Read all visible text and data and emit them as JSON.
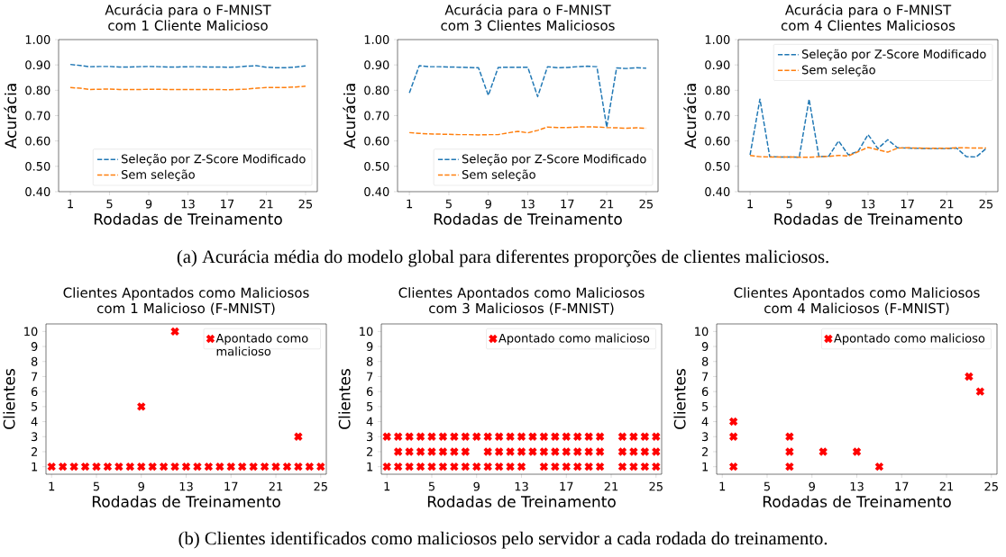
{
  "chart_data": [
    {
      "type": "line",
      "title": "Acurácia para o F-MNIST com 1 Cliente Malicioso",
      "xlabel": "Rodadas de Treinamento",
      "ylabel": "Acurácia",
      "x": [
        1,
        2,
        3,
        4,
        5,
        6,
        7,
        8,
        9,
        10,
        11,
        12,
        13,
        14,
        15,
        16,
        17,
        18,
        19,
        20,
        21,
        22,
        23,
        24,
        25
      ],
      "xlim": [
        -0.2,
        26.2
      ],
      "ylim": [
        0.4,
        1.0
      ],
      "xticks": [
        1,
        5,
        9,
        13,
        17,
        21,
        25
      ],
      "yticks": [
        {
          "value": 0.4,
          "label": "0.40"
        },
        {
          "value": 0.5,
          "label": "0.50"
        },
        {
          "value": 0.6,
          "label": "0.60"
        },
        {
          "value": 0.7,
          "label": "0.70"
        },
        {
          "value": 0.8,
          "label": "0.80"
        },
        {
          "value": 0.9,
          "label": "0.90"
        },
        {
          "value": 1.0,
          "label": "1.00"
        }
      ],
      "line_style": "dashed",
      "legend": "bottom right",
      "annotations": [
        "(a) Acurácia média do modelo global para diferentes proporções de clientes maliciosos."
      ],
      "series": [
        {
          "name": "Seleção por Z-Score Modificado",
          "color": "#1f77b4",
          "values": [
            0.902,
            0.898,
            0.893,
            0.894,
            0.894,
            0.892,
            0.892,
            0.893,
            0.894,
            0.893,
            0.892,
            0.892,
            0.893,
            0.893,
            0.892,
            0.892,
            0.891,
            0.892,
            0.895,
            0.897,
            0.891,
            0.889,
            0.889,
            0.892,
            0.896
          ]
        },
        {
          "name": "Sem seleção",
          "color": "#ff7f0e",
          "values": [
            0.811,
            0.808,
            0.803,
            0.804,
            0.805,
            0.803,
            0.803,
            0.803,
            0.804,
            0.804,
            0.803,
            0.803,
            0.803,
            0.803,
            0.803,
            0.803,
            0.802,
            0.803,
            0.805,
            0.808,
            0.811,
            0.811,
            0.811,
            0.813,
            0.816
          ]
        }
      ]
    },
    {
      "type": "line",
      "title": "Acurácia para o F-MNIST com 3 Clientes Maliciosos",
      "xlabel": "Rodadas de Treinamento",
      "ylabel": "Acurácia",
      "x": [
        1,
        2,
        3,
        4,
        5,
        6,
        7,
        8,
        9,
        10,
        11,
        12,
        13,
        14,
        15,
        16,
        17,
        18,
        19,
        20,
        21,
        22,
        23,
        24,
        25
      ],
      "xlim": [
        -0.2,
        26.2
      ],
      "ylim": [
        0.4,
        1.0
      ],
      "xticks": [
        1,
        5,
        9,
        13,
        17,
        21,
        25
      ],
      "yticks": [
        {
          "value": 0.4,
          "label": "0.40"
        },
        {
          "value": 0.5,
          "label": "0.50"
        },
        {
          "value": 0.6,
          "label": "0.60"
        },
        {
          "value": 0.7,
          "label": "0.70"
        },
        {
          "value": 0.8,
          "label": "0.80"
        },
        {
          "value": 0.9,
          "label": "0.90"
        },
        {
          "value": 1.0,
          "label": "1.00"
        }
      ],
      "line_style": "dashed",
      "legend": "bottom right",
      "series": [
        {
          "name": "Seleção por Z-Score Modificado",
          "color": "#1f77b4",
          "values": [
            0.79,
            0.897,
            0.893,
            0.893,
            0.892,
            0.891,
            0.89,
            0.889,
            0.78,
            0.89,
            0.891,
            0.891,
            0.891,
            0.775,
            0.893,
            0.889,
            0.89,
            0.893,
            0.895,
            0.893,
            0.655,
            0.888,
            0.886,
            0.889,
            0.887
          ]
        },
        {
          "name": "Sem seleção",
          "color": "#ff7f0e",
          "values": [
            0.633,
            0.63,
            0.628,
            0.627,
            0.626,
            0.625,
            0.625,
            0.624,
            0.625,
            0.625,
            0.632,
            0.638,
            0.632,
            0.642,
            0.655,
            0.653,
            0.653,
            0.655,
            0.656,
            0.655,
            0.653,
            0.652,
            0.65,
            0.652,
            0.65
          ]
        }
      ]
    },
    {
      "type": "line",
      "title": "Acurácia para o F-MNIST com 4 Clientes Maliciosos",
      "xlabel": "Rodadas de Treinamento",
      "ylabel": "Acurácia",
      "x": [
        1,
        2,
        3,
        4,
        5,
        6,
        7,
        8,
        9,
        10,
        11,
        12,
        13,
        14,
        15,
        16,
        17,
        18,
        19,
        20,
        21,
        22,
        23,
        24,
        25
      ],
      "xlim": [
        -0.2,
        26.2
      ],
      "ylim": [
        0.4,
        1.0
      ],
      "xticks": [
        1,
        5,
        9,
        13,
        17,
        21,
        25
      ],
      "yticks": [
        {
          "value": 0.4,
          "label": "0.40"
        },
        {
          "value": 0.5,
          "label": "0.50"
        },
        {
          "value": 0.6,
          "label": "0.60"
        },
        {
          "value": 0.7,
          "label": "0.70"
        },
        {
          "value": 0.8,
          "label": "0.80"
        },
        {
          "value": 0.9,
          "label": "0.90"
        },
        {
          "value": 1.0,
          "label": "1.00"
        }
      ],
      "line_style": "dashed",
      "legend": "top right",
      "series": [
        {
          "name": "Seleção por Z-Score Modificado",
          "color": "#1f77b4",
          "values": [
            0.545,
            0.765,
            0.538,
            0.537,
            0.537,
            0.536,
            0.765,
            0.538,
            0.54,
            0.6,
            0.545,
            0.56,
            0.625,
            0.57,
            0.605,
            0.573,
            0.572,
            0.571,
            0.57,
            0.57,
            0.57,
            0.572,
            0.538,
            0.537,
            0.57
          ]
        },
        {
          "name": "Sem seleção",
          "color": "#ff7f0e",
          "values": [
            0.543,
            0.538,
            0.537,
            0.537,
            0.537,
            0.536,
            0.536,
            0.538,
            0.539,
            0.543,
            0.541,
            0.558,
            0.575,
            0.565,
            0.556,
            0.572,
            0.573,
            0.572,
            0.571,
            0.571,
            0.571,
            0.573,
            0.573,
            0.572,
            0.572
          ]
        }
      ]
    },
    {
      "type": "scatter",
      "title": "Clientes Apontados como Maliciosos com 1 Malicioso (F-MNIST)",
      "xlabel": "Rodadas de Treinamento",
      "ylabel": "Clientes",
      "xlim": [
        0.5,
        25.5
      ],
      "ylim": [
        0.5,
        10.5
      ],
      "xticks": [
        1,
        5,
        9,
        13,
        17,
        21,
        25
      ],
      "yticks": [
        1,
        2,
        3,
        4,
        5,
        6,
        7,
        8,
        9,
        10
      ],
      "marker": "cross",
      "legend": "top right",
      "annotations": [
        "(b) Clientes identificados como maliciosos pelo servidor a cada rodada do treinamento."
      ],
      "series": [
        {
          "name": "Apontado como malicioso",
          "color": "#ff0000",
          "x": [
            1,
            2,
            3,
            4,
            5,
            6,
            7,
            8,
            9,
            10,
            11,
            12,
            13,
            14,
            15,
            16,
            17,
            18,
            19,
            20,
            21,
            22,
            23,
            24,
            25,
            9,
            12,
            23
          ],
          "values": [
            1,
            1,
            1,
            1,
            1,
            1,
            1,
            1,
            1,
            1,
            1,
            1,
            1,
            1,
            1,
            1,
            1,
            1,
            1,
            1,
            1,
            1,
            1,
            1,
            1,
            5,
            10,
            3
          ]
        }
      ]
    },
    {
      "type": "scatter",
      "title": "Clientes Apontados como Maliciosos com 3 Maliciosos (F-MNIST)",
      "xlabel": "Rodadas de Treinamento",
      "ylabel": "Clientes",
      "xlim": [
        0.5,
        25.5
      ],
      "ylim": [
        0.5,
        10.5
      ],
      "xticks": [
        1,
        5,
        9,
        13,
        17,
        21,
        25
      ],
      "yticks": [
        1,
        2,
        3,
        4,
        5,
        6,
        7,
        8,
        9,
        10
      ],
      "marker": "cross",
      "legend": "top right",
      "series": [
        {
          "name": "Apontado como malicioso",
          "color": "#ff0000",
          "x": [
            1,
            2,
            3,
            4,
            5,
            6,
            7,
            8,
            9,
            10,
            11,
            12,
            13,
            15,
            16,
            17,
            18,
            19,
            20,
            22,
            23,
            24,
            25,
            2,
            3,
            4,
            5,
            6,
            7,
            8,
            10,
            11,
            12,
            13,
            14,
            15,
            16,
            17,
            18,
            19,
            20,
            22,
            23,
            24,
            25,
            1,
            2,
            3,
            4,
            5,
            6,
            7,
            8,
            9,
            10,
            11,
            12,
            13,
            14,
            15,
            16,
            17,
            18,
            19,
            20,
            22,
            23,
            24,
            25
          ],
          "values": [
            1,
            1,
            1,
            1,
            1,
            1,
            1,
            1,
            1,
            1,
            1,
            1,
            1,
            1,
            1,
            1,
            1,
            1,
            1,
            1,
            1,
            1,
            1,
            2,
            2,
            2,
            2,
            2,
            2,
            2,
            2,
            2,
            2,
            2,
            2,
            2,
            2,
            2,
            2,
            2,
            2,
            2,
            2,
            2,
            2,
            3,
            3,
            3,
            3,
            3,
            3,
            3,
            3,
            3,
            3,
            3,
            3,
            3,
            3,
            3,
            3,
            3,
            3,
            3,
            3,
            3,
            3,
            3,
            3
          ]
        }
      ]
    },
    {
      "type": "scatter",
      "title": "Clientes Apontados como Maliciosos com 4 Maliciosos (F-MNIST)",
      "xlabel": "Rodadas de Treinamento",
      "ylabel": "Clientes",
      "xlim": [
        0.5,
        25.5
      ],
      "ylim": [
        0.5,
        10.5
      ],
      "xticks": [
        1,
        5,
        9,
        13,
        17,
        21,
        25
      ],
      "yticks": [
        1,
        2,
        3,
        4,
        5,
        6,
        7,
        8,
        9,
        10
      ],
      "marker": "cross",
      "legend": "top right",
      "series": [
        {
          "name": "Apontado como malicioso",
          "color": "#ff0000",
          "x": [
            2,
            2,
            2,
            7,
            7,
            7,
            10,
            13,
            15,
            23,
            24
          ],
          "values": [
            1,
            3,
            4,
            1,
            2,
            3,
            2,
            2,
            1,
            7,
            6
          ]
        }
      ]
    }
  ]
}
